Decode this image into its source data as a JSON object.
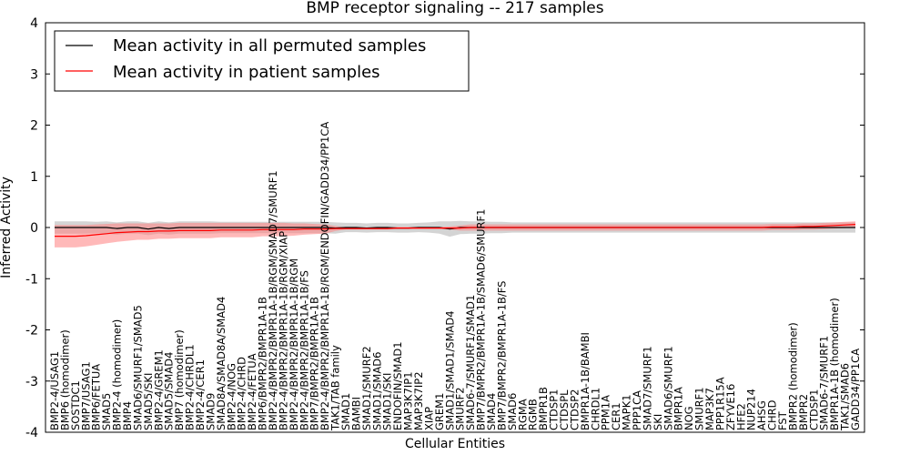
{
  "chart_data": {
    "type": "line",
    "title": "BMP receptor signaling -- 217 samples",
    "xlabel": "Cellular Entities",
    "ylabel": "Inferred Activity",
    "ylim": [
      -4,
      4
    ],
    "yticks": [
      "-4",
      "-3",
      "-2",
      "-1",
      "0",
      "1",
      "2",
      "3",
      "4"
    ],
    "grid": false,
    "legend_position": "top-left",
    "categories": [
      "BMP2-4/USAG1",
      "BMP6 (homodimer)",
      "SOSTDC1",
      "BMP7/USAG1",
      "BMP6/FETUA",
      "SMAD5",
      "BMP2-4 (homodimer)",
      "BMP4",
      "SMAD6/SMURF1/SMAD5",
      "SMAD5/SKI",
      "BMP2-4/GREM1",
      "SMAD5/SMAD4",
      "BMP7 (homodimer)",
      "BMP2-4/CHRDL1",
      "BMP2-4/CER1",
      "SMAD9",
      "SMAD8A/SMAD8A/SMAD4",
      "BMP2-4/NOG",
      "BMP2-4/CHRD",
      "BMP2-4/FETUA",
      "BMP6/BMPR2/BMPR1A-1B",
      "BMP2-4/BMPR2/BMPR1A-1B/RGM/SMAD7/SMURF1",
      "BMP2-4/BMPR2/BMPR1A-1B/RGM/XIAP",
      "BMP2-4/BMPR2/BMPR1A-1B/RGM",
      "BMP2-4/BMPR2/BMPR1A-1B/FS",
      "BMP7/BMPR2/BMPR1A-1B",
      "BMP2-4/BMPR2/BMPR1A-1B/RGM/ENDOFIN/GADD34/PP1CA",
      "TAK1/TAB family",
      "SMAD1",
      "BAMBI",
      "SMAD1/SMURF2",
      "SMAD1/SMAD6",
      "SMAD1/SKI",
      "ENDOFIN/SMAD1",
      "MAP3K7IP1",
      "MAP3K7IP2",
      "XIAP",
      "GREM1",
      "SMAD1/SMAD1/SMAD4",
      "SMURF2",
      "SMAD6-7/SMURF1/SMAD1",
      "BMP7/BMPR2/BMPR1A-1B/SMAD6/SMURF1",
      "SMAD4",
      "BMP7/BMPR2/BMPR1A-1B/FS",
      "SMAD6",
      "RGMA",
      "RGMB",
      "BMPR1B",
      "CTDSP1",
      "CTDSPL",
      "CTDSP2",
      "BMPR1A-1B/BAMBI",
      "CHRDL1",
      "PPM1A",
      "CER1",
      "MAPK1",
      "PPP1CA",
      "SMAD7/SMURF1",
      "SKI",
      "SMAD6/SMURF1",
      "BMPR1A",
      "NOG",
      "SMURF1",
      "MAP3K7",
      "PPP1R15A",
      "ZFYVE16",
      "HFE2",
      "NUP214",
      "AHSG",
      "CHRD",
      "FST",
      "BMPR2 (homodimer)",
      "BMPR2",
      "CTDSP1",
      "SMAD6-7/SMURF1",
      "BMPR1A-1B (homodimer)",
      "TAK1/SMAD6",
      "GADD34/PP1CA"
    ],
    "series": [
      {
        "name": "Mean activity in all permuted samples",
        "color": "#000000",
        "band_color": "#b0b0b0",
        "values": [
          0.0,
          0.0,
          0.0,
          0.0,
          0.0,
          0.0,
          -0.02,
          0.0,
          0.0,
          -0.03,
          0.0,
          -0.02,
          0.0,
          0.0,
          0.0,
          0.0,
          0.0,
          0.0,
          0.0,
          0.0,
          0.0,
          0.0,
          0.0,
          0.0,
          0.0,
          0.0,
          0.0,
          -0.01,
          0.0,
          0.0,
          -0.01,
          0.0,
          0.0,
          -0.01,
          -0.01,
          0.0,
          0.0,
          0.0,
          -0.03,
          0.0,
          0.0,
          0.0,
          0.0,
          0.0,
          0.0,
          0.0,
          0.0,
          0.0,
          0.0,
          0.0,
          0.0,
          0.0,
          0.0,
          0.0,
          0.0,
          0.0,
          0.0,
          0.0,
          0.0,
          0.0,
          0.0,
          0.0,
          0.0,
          0.0,
          0.0,
          0.0,
          0.0,
          0.0,
          0.0,
          0.0,
          0.0,
          0.0,
          0.0,
          0.0,
          0.0,
          0.0,
          0.0,
          0.0
        ],
        "band": [
          0.12,
          0.12,
          0.12,
          0.12,
          0.11,
          0.12,
          0.12,
          0.12,
          0.12,
          0.12,
          0.12,
          0.12,
          0.12,
          0.12,
          0.12,
          0.12,
          0.11,
          0.11,
          0.11,
          0.11,
          0.11,
          0.11,
          0.11,
          0.11,
          0.11,
          0.11,
          0.11,
          0.11,
          0.09,
          0.09,
          0.09,
          0.09,
          0.09,
          0.09,
          0.09,
          0.09,
          0.1,
          0.12,
          0.15,
          0.13,
          0.12,
          0.12,
          0.11,
          0.11,
          0.1,
          0.1,
          0.1,
          0.1,
          0.1,
          0.1,
          0.1,
          0.1,
          0.1,
          0.1,
          0.1,
          0.1,
          0.1,
          0.1,
          0.1,
          0.1,
          0.1,
          0.1,
          0.1,
          0.1,
          0.1,
          0.1,
          0.1,
          0.1,
          0.1,
          0.1,
          0.1,
          0.1,
          0.1,
          0.1,
          0.1,
          0.1,
          0.1,
          0.1
        ]
      },
      {
        "name": "Mean activity in patient samples",
        "color": "#ff0000",
        "band_color": "#ff8080",
        "values": [
          -0.17,
          -0.17,
          -0.17,
          -0.16,
          -0.14,
          -0.12,
          -0.1,
          -0.09,
          -0.08,
          -0.08,
          -0.07,
          -0.07,
          -0.06,
          -0.06,
          -0.06,
          -0.06,
          -0.05,
          -0.05,
          -0.05,
          -0.05,
          -0.04,
          -0.04,
          -0.04,
          -0.04,
          -0.03,
          -0.03,
          -0.03,
          -0.02,
          -0.02,
          -0.02,
          -0.02,
          -0.02,
          -0.02,
          -0.01,
          -0.01,
          -0.01,
          -0.01,
          -0.01,
          -0.01,
          -0.01,
          0.0,
          0.0,
          0.0,
          0.0,
          0.0,
          0.0,
          0.0,
          0.0,
          0.0,
          0.0,
          0.0,
          0.0,
          0.0,
          0.0,
          0.0,
          0.0,
          0.0,
          0.0,
          0.0,
          0.0,
          0.0,
          0.0,
          0.0,
          0.0,
          0.0,
          0.0,
          0.0,
          0.0,
          0.0,
          0.01,
          0.01,
          0.01,
          0.02,
          0.02,
          0.03,
          0.04,
          0.05,
          0.06
        ],
        "band": [
          0.22,
          0.22,
          0.22,
          0.21,
          0.2,
          0.19,
          0.18,
          0.17,
          0.16,
          0.16,
          0.15,
          0.15,
          0.15,
          0.15,
          0.15,
          0.15,
          0.14,
          0.14,
          0.14,
          0.14,
          0.13,
          0.13,
          0.13,
          0.12,
          0.11,
          0.1,
          0.09,
          0.05,
          0.02,
          0.02,
          0.02,
          0.02,
          0.02,
          0.02,
          0.02,
          0.02,
          0.02,
          0.02,
          0.03,
          0.05,
          0.06,
          0.06,
          0.06,
          0.06,
          0.06,
          0.06,
          0.06,
          0.06,
          0.06,
          0.06,
          0.06,
          0.06,
          0.06,
          0.06,
          0.06,
          0.06,
          0.06,
          0.06,
          0.06,
          0.06,
          0.06,
          0.06,
          0.06,
          0.06,
          0.06,
          0.06,
          0.06,
          0.06,
          0.06,
          0.06,
          0.06,
          0.06,
          0.06,
          0.06,
          0.06,
          0.06,
          0.06,
          0.06
        ]
      }
    ]
  }
}
